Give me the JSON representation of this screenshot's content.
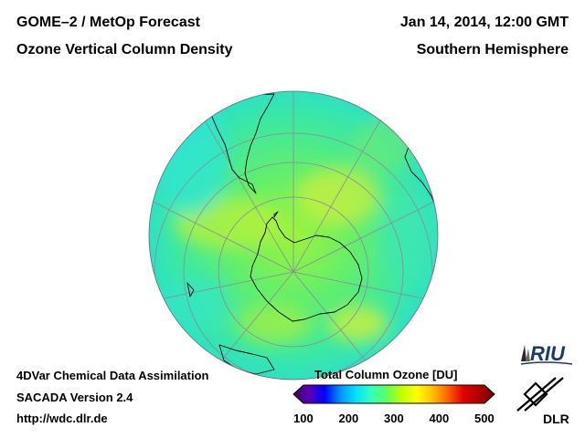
{
  "header": {
    "title_left_line1": "GOME–2 / MetOp Forecast",
    "title_left_line2": "Ozone Vertical Column Density",
    "title_right_line1": "Jan 14, 2014, 12:00 GMT",
    "title_right_line2": "Southern Hemisphere"
  },
  "footer": {
    "line1": "4DVar Chemical Data Assimilation",
    "line2": "SACADA Version 2.4",
    "line3": "http://wdc.dlr.de"
  },
  "colorbar": {
    "title": "Total Column Ozone [DU]",
    "ticks": [
      "100",
      "200",
      "300",
      "400",
      "500"
    ],
    "min": 100,
    "max": 500,
    "colors": [
      "#3a0052",
      "#5a00b4",
      "#0000ff",
      "#0090ff",
      "#00e0ff",
      "#30ffc0",
      "#60ff60",
      "#c0ff00",
      "#ffff00",
      "#ffc000",
      "#ff6000",
      "#e00000",
      "#b00000",
      "#6a0000"
    ]
  },
  "logos": {
    "riu": "RIU",
    "dlr": "DLR"
  },
  "map": {
    "projection": "orthographic south polar",
    "ocean_color": "#4dee88",
    "grid_color": "#8a8a9a",
    "coast_color": "#000000"
  }
}
